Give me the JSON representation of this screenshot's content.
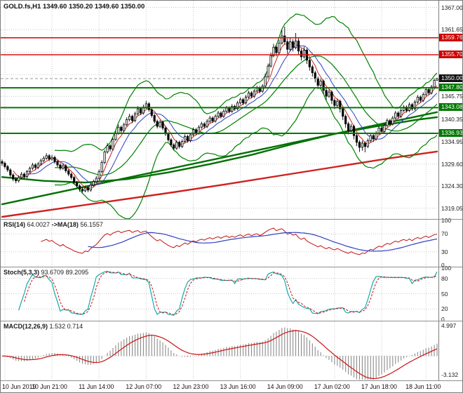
{
  "header": {
    "symbol": "GOLD.fs,H1",
    "open": "1349.60",
    "high": "1350.20",
    "low": "1349.60",
    "close": "1350.00"
  },
  "colors": {
    "bg": "#ffffff",
    "grid": "#c9c9c9",
    "bull": "#ffffff",
    "bear": "#000000",
    "candle_outline": "#000000",
    "border": "#7d7d7d"
  },
  "chart_data": {
    "type": "candlestick",
    "symbol": "GOLD.fs",
    "timeframe": "H1",
    "price_range": [
      1316.5,
      1368.6
    ],
    "grid_prices": [
      1367.0,
      1361.65,
      1356.3,
      1350.95,
      1345.75,
      1340.35,
      1334.95,
      1329.6,
      1324.3,
      1319.05
    ],
    "axis_labels": [
      {
        "text": "1367.00",
        "price": 1367.0
      },
      {
        "text": "1361.65",
        "price": 1361.65
      },
      {
        "text": "1345.75",
        "price": 1345.75
      },
      {
        "text": "1340.35",
        "price": 1340.35
      },
      {
        "text": "1334.95",
        "price": 1334.95
      },
      {
        "text": "1329.60",
        "price": 1329.6
      },
      {
        "text": "1324.30",
        "price": 1324.3
      },
      {
        "text": "1319.05",
        "price": 1319.05
      }
    ],
    "levels": [
      {
        "price": 1359.76,
        "text": "1359.76",
        "color": "#dd1111",
        "badge_bg": "#cc0000",
        "width": 1.6,
        "dash": "",
        "role": "resistance"
      },
      {
        "price": 1355.7,
        "text": "1355.70",
        "color": "#dd1111",
        "badge_bg": "#cc0000",
        "width": 1.6,
        "dash": "",
        "role": "resistance"
      },
      {
        "price": 1350.0,
        "text": "1350.00",
        "color": "#9a9a9a",
        "badge_bg": "#111111",
        "width": 1,
        "dash": "4 3",
        "role": "current-price"
      },
      {
        "price": 1347.8,
        "text": "1347.80",
        "color": "#007800",
        "badge_bg": "#007800",
        "width": 2,
        "dash": "",
        "role": "support"
      },
      {
        "price": 1343.08,
        "text": "1343.08",
        "color": "#007800",
        "badge_bg": "#007800",
        "width": 2,
        "dash": "",
        "role": "support"
      },
      {
        "price": 1336.93,
        "text": "1336.93",
        "color": "#007800",
        "badge_bg": "#007800",
        "width": 2,
        "dash": "",
        "role": "support"
      }
    ],
    "x_labels": [
      "10 Jun 2019",
      "10 Jun 21:00",
      "11 Jun 14:00",
      "12 Jun 07:00",
      "12 Jun 23:00",
      "13 Jun 16:00",
      "14 Jun 09:00",
      "17 Jun 02:00",
      "17 Jun 18:00",
      "18 Jun 11:00"
    ],
    "x_label_indices": [
      1,
      18,
      35,
      52,
      69,
      86,
      103,
      120,
      137,
      153
    ],
    "candles": [
      [
        1330.2,
        1330.7,
        1329.2,
        1329.8
      ],
      [
        1329.8,
        1330.2,
        1328.5,
        1329.0
      ],
      [
        1329.0,
        1329.4,
        1327.7,
        1328.2
      ],
      [
        1328.2,
        1328.6,
        1326.5,
        1327.0
      ],
      [
        1327.0,
        1327.4,
        1325.5,
        1326.0
      ],
      [
        1326.0,
        1326.5,
        1325.0,
        1325.6
      ],
      [
        1325.6,
        1326.9,
        1325.2,
        1326.4
      ],
      [
        1326.4,
        1327.7,
        1326.0,
        1327.2
      ],
      [
        1327.2,
        1327.6,
        1326.1,
        1326.6
      ],
      [
        1326.6,
        1328.2,
        1326.2,
        1327.8
      ],
      [
        1327.8,
        1329.0,
        1327.4,
        1328.6
      ],
      [
        1328.6,
        1329.9,
        1328.2,
        1329.4
      ],
      [
        1329.4,
        1329.8,
        1328.3,
        1328.8
      ],
      [
        1328.8,
        1330.1,
        1328.4,
        1329.6
      ],
      [
        1329.6,
        1330.9,
        1329.2,
        1330.4
      ],
      [
        1330.4,
        1331.5,
        1330.0,
        1331.0
      ],
      [
        1331.0,
        1332.2,
        1330.6,
        1331.6
      ],
      [
        1331.6,
        1332.0,
        1330.3,
        1330.8
      ],
      [
        1330.8,
        1331.8,
        1330.4,
        1331.2
      ],
      [
        1331.2,
        1331.6,
        1329.7,
        1330.2
      ],
      [
        1330.2,
        1330.6,
        1328.9,
        1329.4
      ],
      [
        1329.4,
        1329.8,
        1328.1,
        1328.6
      ],
      [
        1328.6,
        1329.7,
        1328.2,
        1329.2
      ],
      [
        1329.2,
        1329.6,
        1327.5,
        1328.0
      ],
      [
        1328.0,
        1328.4,
        1326.7,
        1327.2
      ],
      [
        1327.2,
        1327.6,
        1325.9,
        1326.4
      ],
      [
        1326.4,
        1326.8,
        1324.7,
        1325.2
      ],
      [
        1325.2,
        1325.6,
        1323.9,
        1324.4
      ],
      [
        1324.4,
        1324.8,
        1323.0,
        1323.6
      ],
      [
        1323.6,
        1324.1,
        1322.8,
        1323.2
      ],
      [
        1323.2,
        1324.5,
        1322.9,
        1324.0
      ],
      [
        1324.0,
        1324.4,
        1322.9,
        1323.4
      ],
      [
        1323.4,
        1325.1,
        1323.0,
        1324.6
      ],
      [
        1324.6,
        1325.9,
        1324.2,
        1325.4
      ],
      [
        1325.4,
        1326.7,
        1325.0,
        1326.2
      ],
      [
        1326.2,
        1328.3,
        1325.8,
        1327.8
      ],
      [
        1327.8,
        1330.5,
        1327.4,
        1330.0
      ],
      [
        1330.0,
        1333.0,
        1329.6,
        1332.5
      ],
      [
        1332.5,
        1334.6,
        1332.1,
        1334.0
      ],
      [
        1334.0,
        1334.4,
        1332.6,
        1333.2
      ],
      [
        1333.2,
        1336.0,
        1332.8,
        1335.5
      ],
      [
        1335.5,
        1337.6,
        1335.1,
        1337.0
      ],
      [
        1337.0,
        1339.0,
        1336.6,
        1338.4
      ],
      [
        1338.4,
        1338.8,
        1337.0,
        1337.6
      ],
      [
        1337.6,
        1339.5,
        1337.2,
        1339.0
      ],
      [
        1339.0,
        1340.8,
        1338.6,
        1340.2
      ],
      [
        1340.2,
        1341.6,
        1339.8,
        1341.0
      ],
      [
        1341.0,
        1341.4,
        1339.4,
        1340.0
      ],
      [
        1340.0,
        1342.1,
        1339.6,
        1341.6
      ],
      [
        1341.6,
        1343.4,
        1341.2,
        1342.8
      ],
      [
        1342.8,
        1343.2,
        1341.3,
        1341.8
      ],
      [
        1341.8,
        1343.8,
        1341.4,
        1343.2
      ],
      [
        1343.2,
        1344.7,
        1342.8,
        1344.0
      ],
      [
        1344.0,
        1344.4,
        1342.1,
        1342.6
      ],
      [
        1342.6,
        1343.0,
        1340.7,
        1341.2
      ],
      [
        1341.2,
        1341.6,
        1339.3,
        1339.8
      ],
      [
        1339.8,
        1340.2,
        1338.1,
        1338.6
      ],
      [
        1338.6,
        1340.1,
        1338.2,
        1339.6
      ],
      [
        1339.6,
        1340.0,
        1337.7,
        1338.2
      ],
      [
        1338.2,
        1338.6,
        1336.3,
        1336.8
      ],
      [
        1336.8,
        1337.2,
        1334.9,
        1335.4
      ],
      [
        1335.4,
        1335.8,
        1333.7,
        1334.2
      ],
      [
        1334.2,
        1334.6,
        1332.9,
        1333.4
      ],
      [
        1333.4,
        1335.3,
        1333.0,
        1334.8
      ],
      [
        1334.8,
        1335.2,
        1333.3,
        1333.8
      ],
      [
        1333.8,
        1335.5,
        1333.4,
        1335.0
      ],
      [
        1335.0,
        1336.7,
        1334.6,
        1336.2
      ],
      [
        1336.2,
        1336.6,
        1334.7,
        1335.2
      ],
      [
        1335.2,
        1337.1,
        1334.8,
        1336.6
      ],
      [
        1336.6,
        1338.3,
        1336.2,
        1337.8
      ],
      [
        1337.8,
        1338.2,
        1336.5,
        1337.0
      ],
      [
        1337.0,
        1338.9,
        1336.6,
        1338.4
      ],
      [
        1338.4,
        1339.7,
        1338.0,
        1339.2
      ],
      [
        1339.2,
        1339.6,
        1338.1,
        1338.6
      ],
      [
        1338.6,
        1340.3,
        1338.2,
        1339.8
      ],
      [
        1339.8,
        1341.1,
        1339.4,
        1340.6
      ],
      [
        1340.6,
        1341.0,
        1339.4,
        1339.9
      ],
      [
        1339.9,
        1341.5,
        1339.5,
        1341.0
      ],
      [
        1341.0,
        1342.3,
        1340.6,
        1341.8
      ],
      [
        1341.8,
        1342.2,
        1340.5,
        1341.0
      ],
      [
        1341.0,
        1342.7,
        1340.6,
        1342.2
      ],
      [
        1342.2,
        1343.5,
        1341.8,
        1343.0
      ],
      [
        1343.0,
        1343.4,
        1341.7,
        1342.2
      ],
      [
        1342.2,
        1343.9,
        1341.8,
        1343.4
      ],
      [
        1343.4,
        1343.8,
        1342.3,
        1342.8
      ],
      [
        1342.8,
        1344.7,
        1342.4,
        1344.2
      ],
      [
        1344.2,
        1345.5,
        1343.8,
        1345.0
      ],
      [
        1345.0,
        1345.4,
        1343.7,
        1344.2
      ],
      [
        1344.2,
        1346.1,
        1343.8,
        1345.6
      ],
      [
        1345.6,
        1347.1,
        1345.2,
        1346.6
      ],
      [
        1346.6,
        1347.0,
        1345.3,
        1345.8
      ],
      [
        1345.8,
        1347.5,
        1345.4,
        1347.0
      ],
      [
        1347.0,
        1348.3,
        1346.6,
        1347.8
      ],
      [
        1347.8,
        1348.2,
        1346.5,
        1347.0
      ],
      [
        1347.0,
        1348.7,
        1346.6,
        1348.2
      ],
      [
        1348.2,
        1351.2,
        1347.8,
        1350.5
      ],
      [
        1350.5,
        1353.6,
        1350.1,
        1353.0
      ],
      [
        1353.0,
        1356.2,
        1352.6,
        1355.5
      ],
      [
        1355.5,
        1358.3,
        1355.1,
        1357.5
      ],
      [
        1357.5,
        1358.0,
        1355.3,
        1356.2
      ],
      [
        1356.2,
        1359.3,
        1355.8,
        1358.5
      ],
      [
        1358.5,
        1361.6,
        1358.1,
        1360.2
      ],
      [
        1360.2,
        1362.4,
        1358.2,
        1358.8
      ],
      [
        1358.8,
        1359.5,
        1355.9,
        1357.0
      ],
      [
        1357.0,
        1359.6,
        1356.6,
        1358.8
      ],
      [
        1358.8,
        1359.4,
        1356.5,
        1357.4
      ],
      [
        1357.4,
        1360.9,
        1357.0,
        1359.0
      ],
      [
        1359.0,
        1359.6,
        1355.7,
        1356.6
      ],
      [
        1356.6,
        1357.2,
        1354.3,
        1355.2
      ],
      [
        1355.2,
        1357.6,
        1354.8,
        1356.8
      ],
      [
        1356.8,
        1357.2,
        1353.5,
        1354.4
      ],
      [
        1354.4,
        1354.9,
        1351.9,
        1352.8
      ],
      [
        1352.8,
        1353.3,
        1350.5,
        1351.4
      ],
      [
        1351.4,
        1351.9,
        1349.1,
        1350.0
      ],
      [
        1350.0,
        1350.5,
        1347.5,
        1348.4
      ],
      [
        1348.4,
        1350.0,
        1348.0,
        1349.4
      ],
      [
        1349.4,
        1349.8,
        1346.3,
        1347.2
      ],
      [
        1347.2,
        1347.7,
        1344.9,
        1345.8
      ],
      [
        1345.8,
        1347.4,
        1345.4,
        1346.8
      ],
      [
        1346.8,
        1347.2,
        1343.9,
        1344.8
      ],
      [
        1344.8,
        1345.3,
        1342.7,
        1343.6
      ],
      [
        1343.6,
        1345.2,
        1343.2,
        1344.6
      ],
      [
        1344.6,
        1345.0,
        1341.9,
        1342.8
      ],
      [
        1342.8,
        1343.3,
        1340.1,
        1341.0
      ],
      [
        1341.0,
        1341.5,
        1338.3,
        1339.2
      ],
      [
        1339.2,
        1339.7,
        1336.7,
        1337.6
      ],
      [
        1337.6,
        1339.2,
        1337.2,
        1338.6
      ],
      [
        1338.6,
        1339.0,
        1335.5,
        1336.4
      ],
      [
        1336.4,
        1336.9,
        1333.9,
        1334.8
      ],
      [
        1334.8,
        1335.3,
        1332.5,
        1333.6
      ],
      [
        1333.6,
        1335.2,
        1332.8,
        1334.6
      ],
      [
        1334.6,
        1335.0,
        1332.4,
        1333.8
      ],
      [
        1333.8,
        1335.7,
        1333.4,
        1335.2
      ],
      [
        1335.2,
        1336.9,
        1334.8,
        1336.4
      ],
      [
        1336.4,
        1336.8,
        1334.9,
        1335.6
      ],
      [
        1335.6,
        1337.5,
        1335.2,
        1337.0
      ],
      [
        1337.0,
        1338.7,
        1336.6,
        1338.2
      ],
      [
        1338.2,
        1338.6,
        1336.9,
        1337.4
      ],
      [
        1337.4,
        1339.3,
        1337.0,
        1338.8
      ],
      [
        1338.8,
        1340.5,
        1338.4,
        1340.0
      ],
      [
        1340.0,
        1340.4,
        1338.7,
        1339.2
      ],
      [
        1339.2,
        1341.1,
        1338.8,
        1340.6
      ],
      [
        1340.6,
        1342.3,
        1340.2,
        1341.8
      ],
      [
        1341.8,
        1342.2,
        1340.5,
        1341.0
      ],
      [
        1341.0,
        1342.9,
        1340.6,
        1342.4
      ],
      [
        1342.4,
        1343.7,
        1342.0,
        1343.2
      ],
      [
        1343.2,
        1343.6,
        1341.9,
        1342.4
      ],
      [
        1342.4,
        1344.3,
        1342.0,
        1343.8
      ],
      [
        1343.8,
        1344.2,
        1342.3,
        1342.8
      ],
      [
        1342.8,
        1344.9,
        1342.4,
        1344.4
      ],
      [
        1344.4,
        1346.1,
        1344.0,
        1345.6
      ],
      [
        1345.6,
        1346.0,
        1344.3,
        1344.8
      ],
      [
        1344.8,
        1346.7,
        1344.4,
        1346.2
      ],
      [
        1346.2,
        1347.9,
        1345.8,
        1347.4
      ],
      [
        1347.4,
        1347.8,
        1346.1,
        1346.6
      ],
      [
        1346.6,
        1348.5,
        1346.2,
        1348.0
      ],
      [
        1348.0,
        1349.9,
        1347.6,
        1349.6
      ],
      [
        1349.6,
        1350.2,
        1349.6,
        1350.0
      ]
    ],
    "overlays": {
      "bollinger": {
        "period": 20,
        "mult": 2.3,
        "color": "#008000",
        "width": 1.2
      },
      "ma_fast": {
        "period": 5,
        "color": "#cc2020",
        "width": 1
      },
      "ma_slow": {
        "period": 10,
        "color": "#3040c0",
        "width": 1
      },
      "trend_lines": [
        {
          "name": "trend-green-straight",
          "color": "#007000",
          "width": 2.4,
          "points": [
            [
              0,
              1320.0
            ],
            [
              157,
              1342.0
            ]
          ]
        },
        {
          "name": "ma-green-slow",
          "color": "#007000",
          "width": 2.4,
          "points": [
            [
              0,
              1326.5
            ],
            [
              15,
              1325.6
            ],
            [
              30,
              1325.2
            ],
            [
              45,
              1326.0
            ],
            [
              60,
              1327.6
            ],
            [
              75,
              1329.6
            ],
            [
              90,
              1331.8
            ],
            [
              105,
              1334.4
            ],
            [
              120,
              1336.8
            ],
            [
              135,
              1338.6
            ],
            [
              150,
              1340.2
            ],
            [
              157,
              1340.8
            ]
          ]
        },
        {
          "name": "ma-red-long",
          "color": "#d02020",
          "width": 2.4,
          "points": [
            [
              0,
              1317.0
            ],
            [
              20,
              1318.9
            ],
            [
              40,
              1320.8
            ],
            [
              60,
              1322.7
            ],
            [
              80,
              1324.7
            ],
            [
              100,
              1326.8
            ],
            [
              120,
              1328.9
            ],
            [
              140,
              1331.0
            ],
            [
              157,
              1332.6
            ]
          ]
        }
      ]
    },
    "panels": {
      "rsi": {
        "label": "RSI(14)",
        "value": "64.0027",
        "ma_label": "->MA(18)",
        "ma_value": "56.1557",
        "period": 14,
        "ma_period": 18,
        "scale": [
          0,
          100
        ],
        "grid": [
          70,
          30
        ],
        "axis_labels": [
          {
            "text": "100",
            "v": 100
          },
          {
            "text": "70",
            "v": 70
          },
          {
            "text": "30",
            "v": 30
          },
          {
            "text": "0",
            "v": 0
          }
        ],
        "color_main": "#c01515",
        "color_ma": "#3040c0"
      },
      "stoch": {
        "label": "Stoch(5,3,3)",
        "value": "93.6709",
        "value2": "89.2095",
        "k": 5,
        "slowing": 3,
        "d": 3,
        "scale": [
          0,
          100
        ],
        "grid": [
          80,
          50,
          20
        ],
        "axis_labels": [
          {
            "text": "100",
            "v": 100
          },
          {
            "text": "80",
            "v": 80
          },
          {
            "text": "50",
            "v": 50
          },
          {
            "text": "20",
            "v": 20
          },
          {
            "text": "0",
            "v": 0
          }
        ],
        "color_k": "#00a5a5",
        "color_d": "#cc1111"
      },
      "macd": {
        "label": "MACD(12,26,9)",
        "value": "1.532",
        "value2": "0.714",
        "fast": 12,
        "slow": 26,
        "signal": 9,
        "scale": [
          -3.8,
          5.6
        ],
        "grid": [
          0
        ],
        "axis_labels": [
          {
            "text": "4.997",
            "v": 4.997
          },
          {
            "text": "-3.132",
            "v": -3.132
          }
        ],
        "color_hist": "#808080",
        "color_signal": "#cc1111"
      }
    }
  }
}
